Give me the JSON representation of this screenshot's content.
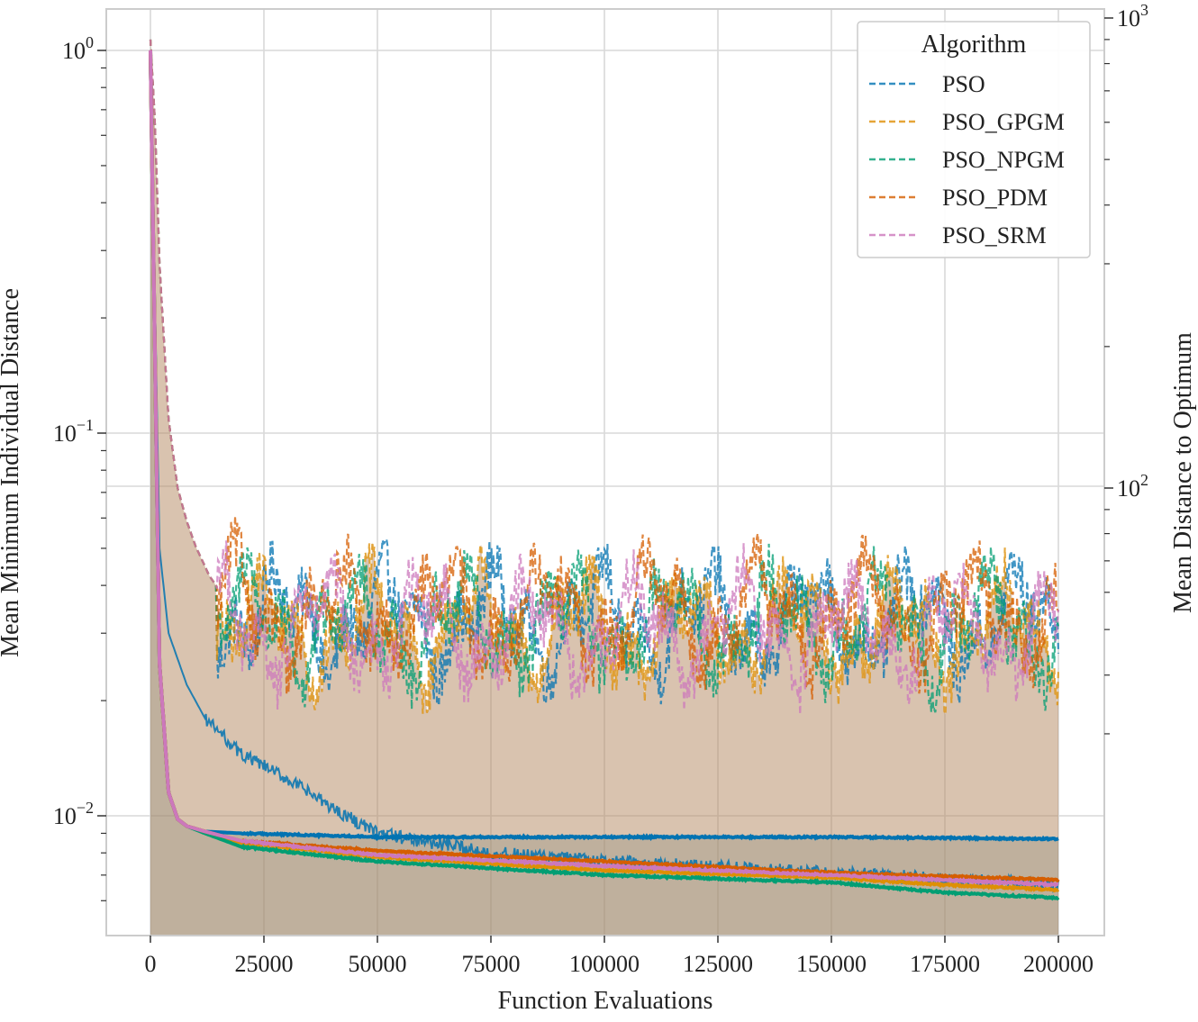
{
  "chart_data": {
    "type": "line",
    "xlabel": "Function Evaluations",
    "ylabel_left": "Mean Minimum Individual Distance",
    "ylabel_right": "Mean Distance to Optimum",
    "x_range": [
      0,
      200000
    ],
    "x_ticks": [
      0,
      25000,
      50000,
      75000,
      100000,
      125000,
      150000,
      175000,
      200000
    ],
    "x_tick_labels": [
      "0",
      "25000",
      "50000",
      "75000",
      "100000",
      "125000",
      "150000",
      "175000",
      "200000"
    ],
    "y_left_scale": "log",
    "y_left_range": [
      0.0055,
      1.1
    ],
    "y_left_ticks": [
      1,
      0.1,
      0.01
    ],
    "y_left_tick_labels": [
      {
        "base": "10",
        "exp": "0"
      },
      {
        "base": "10",
        "exp": "−1"
      },
      {
        "base": "10",
        "exp": "−2"
      }
    ],
    "y_right_scale": "log",
    "y_right_range": [
      25,
      1000
    ],
    "y_right_ticks": [
      100,
      1000
    ],
    "y_right_tick_labels": [
      {
        "base": "10",
        "exp": "2"
      },
      {
        "base": "10",
        "exp": "3"
      }
    ],
    "grid": true,
    "legend": {
      "title": "Algorithm",
      "placement": "top-right",
      "style": "dashed"
    },
    "series": [
      {
        "name": "PSO",
        "color": "#0173b2",
        "min_distance": {
          "x": [
            0,
            2000,
            4000,
            6000,
            8000,
            12000,
            20000,
            50000,
            100000,
            150000,
            200000
          ],
          "y": [
            1.0,
            0.025,
            0.0115,
            0.0098,
            0.0094,
            0.0091,
            0.009,
            0.0088,
            0.0088,
            0.0088,
            0.0087
          ]
        },
        "distance_to_optimum": {
          "x": [
            0,
            1000,
            2000,
            4000,
            6000,
            8000,
            10000,
            13000,
            15000,
            20000,
            30000,
            40000,
            50000,
            60000,
            75000,
            100000,
            125000,
            150000,
            175000,
            200000
          ],
          "y": [
            900,
            600,
            300,
            140,
            100,
            85,
            75,
            65,
            55,
            50,
            43,
            39,
            36,
            34,
            33,
            32,
            31,
            30,
            29.5,
            29
          ],
          "level_after_15000": 52
        }
      },
      {
        "name": "PSO_GPGM",
        "color": "#de8f05",
        "min_distance": {
          "x": [
            0,
            2000,
            4000,
            6000,
            8000,
            12000,
            20000,
            50000,
            100000,
            150000,
            175000,
            200000
          ],
          "y": [
            1.0,
            0.025,
            0.0115,
            0.0098,
            0.0094,
            0.0091,
            0.0085,
            0.0078,
            0.0072,
            0.0069,
            0.0066,
            0.0064
          ]
        },
        "distance_to_optimum": {
          "x": [
            0,
            2000,
            4000,
            8000,
            13000,
            200000
          ],
          "y": [
            900,
            300,
            140,
            85,
            65,
            60
          ],
          "level_after_15000": 50
        }
      },
      {
        "name": "PSO_NPGM",
        "color": "#029e73",
        "min_distance": {
          "x": [
            0,
            2000,
            4000,
            6000,
            8000,
            12000,
            20000,
            50000,
            100000,
            150000,
            175000,
            200000
          ],
          "y": [
            1.0,
            0.025,
            0.0115,
            0.0098,
            0.0094,
            0.009,
            0.0083,
            0.0076,
            0.007,
            0.0067,
            0.0063,
            0.0061
          ]
        },
        "distance_to_optimum": {
          "x": [
            0,
            2000,
            4000,
            8000,
            13000,
            200000
          ],
          "y": [
            900,
            300,
            140,
            85,
            65,
            60
          ],
          "level_after_15000": 51
        }
      },
      {
        "name": "PSO_PDM",
        "color": "#d55e00",
        "min_distance": {
          "x": [
            0,
            2000,
            4000,
            6000,
            8000,
            12000,
            20000,
            50000,
            100000,
            150000,
            200000
          ],
          "y": [
            1.0,
            0.025,
            0.0115,
            0.0098,
            0.0094,
            0.0091,
            0.0086,
            0.0081,
            0.0076,
            0.0071,
            0.0068
          ]
        },
        "distance_to_optimum": {
          "x": [
            0,
            2000,
            4000,
            8000,
            13000,
            200000
          ],
          "y": [
            900,
            300,
            140,
            85,
            65,
            60
          ],
          "level_after_15000": 54
        }
      },
      {
        "name": "PSO_SRM",
        "color": "#cc78bc",
        "min_distance": {
          "x": [
            0,
            2000,
            4000,
            6000,
            8000,
            12000,
            20000,
            50000,
            100000,
            150000,
            200000
          ],
          "y": [
            1.0,
            0.025,
            0.0115,
            0.0098,
            0.0094,
            0.0091,
            0.0086,
            0.0079,
            0.0074,
            0.007,
            0.0066
          ]
        },
        "distance_to_optimum": {
          "x": [
            0,
            2000,
            4000,
            8000,
            13000,
            200000
          ],
          "y": [
            900,
            300,
            140,
            85,
            65,
            60
          ],
          "level_after_15000": 50
        }
      }
    ]
  }
}
